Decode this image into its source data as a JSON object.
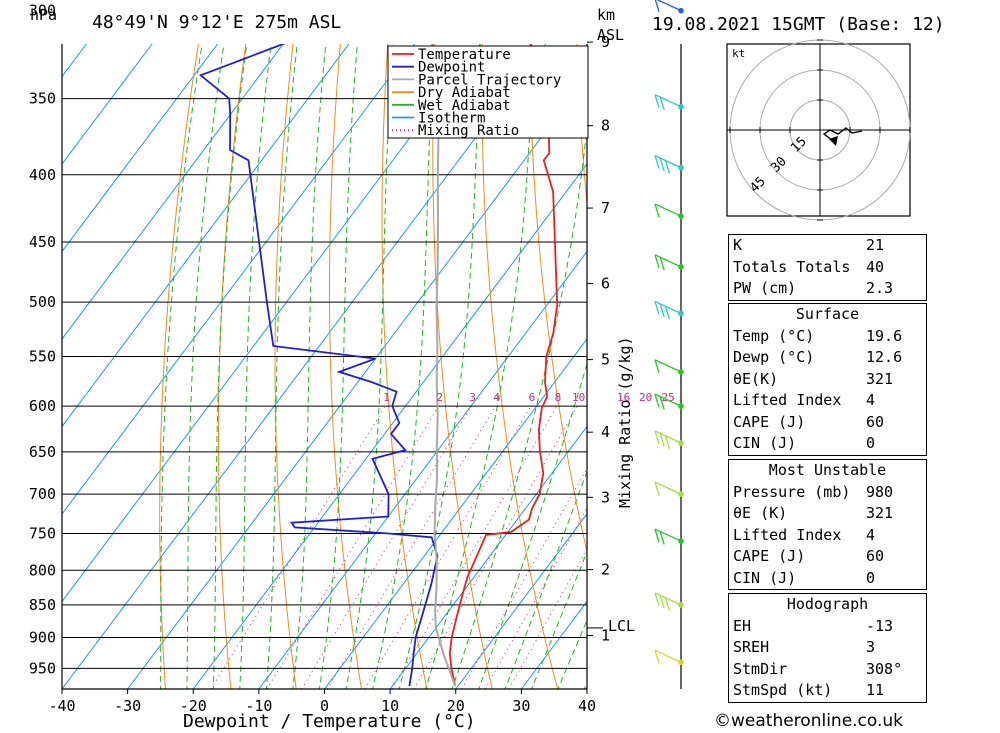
{
  "header": {
    "left_title": "48°49'N  9°12'E  275m  ASL",
    "right_title": "19.08.2021  15GMT  (Base: 12)",
    "hpa_label": "hPa",
    "km_label": "km",
    "asl_label": "ASL",
    "lcl_label": "LCL"
  },
  "chart_data": {
    "type": "line",
    "title": "48°49'N  9°12'E  275m  ASL",
    "xlabel": "Dewpoint / Temperature (°C)",
    "ylabel": "hPa",
    "right_axis_label": "Mixing Ratio (g/kg)",
    "xlim": [
      -40,
      40
    ],
    "ylim": [
      985,
      300
    ],
    "x_ticks": [
      -40,
      -30,
      -20,
      -10,
      0,
      10,
      20,
      30,
      40
    ],
    "pressure_ticks": [
      300,
      350,
      400,
      450,
      500,
      550,
      600,
      650,
      700,
      750,
      800,
      850,
      900,
      950
    ],
    "height_ticks_km": [
      1,
      2,
      3,
      4,
      5,
      6,
      7,
      8,
      9
    ],
    "height_tick_pressure": [
      897,
      799,
      704,
      628,
      553,
      484,
      424,
      367,
      317
    ],
    "lcl_pressure": 885,
    "mixing_ratio_labels": [
      "1",
      "2",
      "3",
      "4",
      "6",
      "8",
      "10",
      "16",
      "20",
      "25"
    ],
    "mixing_ratio_values": [
      1,
      2,
      3,
      4,
      6,
      8,
      10,
      16,
      20,
      25
    ],
    "legend_position": "top-right",
    "series": [
      {
        "name": "Temperature",
        "color": "#e8201e",
        "points": [
          [
            19.6,
            980
          ],
          [
            17,
            950
          ],
          [
            15,
            925
          ],
          [
            13.5,
            900
          ],
          [
            12,
            870
          ],
          [
            10.5,
            840
          ],
          [
            9,
            810
          ],
          [
            8,
            780
          ],
          [
            7.3,
            760
          ],
          [
            7,
            752
          ],
          [
            10.5,
            748
          ],
          [
            11.8,
            732
          ],
          [
            11,
            718
          ],
          [
            10.5,
            700
          ],
          [
            8.7,
            675
          ],
          [
            5.5,
            648
          ],
          [
            3,
            625
          ],
          [
            1,
            602
          ],
          [
            0.5,
            590
          ],
          [
            -1.5,
            575
          ],
          [
            -4.2,
            550
          ],
          [
            -5.8,
            528
          ],
          [
            -8.5,
            502
          ],
          [
            -13,
            470
          ],
          [
            -17.5,
            440
          ],
          [
            -22,
            412
          ],
          [
            -27,
            390
          ],
          [
            -27,
            385
          ],
          [
            -31.5,
            360
          ],
          [
            -37,
            338
          ],
          [
            -40,
            326
          ],
          [
            -44,
            312
          ],
          [
            -48,
            300
          ]
        ]
      },
      {
        "name": "Dewpoint",
        "color": "#2020d0",
        "points": [
          [
            12.6,
            980
          ],
          [
            11,
            950
          ],
          [
            9.5,
            925
          ],
          [
            8,
            900
          ],
          [
            6.2,
            860
          ],
          [
            4.3,
            820
          ],
          [
            2,
            780
          ],
          [
            -1,
            755
          ],
          [
            -8,
            750
          ],
          [
            -23,
            742
          ],
          [
            -24,
            736
          ],
          [
            -10,
            728
          ],
          [
            -12.5,
            700
          ],
          [
            -19,
            658
          ],
          [
            -15,
            648
          ],
          [
            -19,
            630
          ],
          [
            -19,
            618
          ],
          [
            -22,
            600
          ],
          [
            -23,
            585
          ],
          [
            -28,
            575
          ],
          [
            -34,
            565
          ],
          [
            -30,
            552
          ],
          [
            -47,
            540
          ],
          [
            -53,
            500
          ],
          [
            -72,
            390
          ],
          [
            -76,
            383
          ],
          [
            -80,
            360
          ],
          [
            -82,
            350
          ],
          [
            -89,
            336
          ],
          [
            -80,
            318
          ],
          [
            -92,
            300
          ]
        ]
      },
      {
        "name": "Parcel Trajectory",
        "color": "#a8a8a8",
        "points": [
          [
            19.6,
            980
          ],
          [
            14.5,
            930
          ],
          [
            10,
            885
          ],
          [
            8,
            860
          ],
          [
            5.5,
            825
          ],
          [
            2.3,
            785
          ],
          [
            -1,
            750
          ],
          [
            -4,
            715
          ],
          [
            -7,
            680
          ],
          [
            -10.5,
            645
          ],
          [
            -14,
            610
          ],
          [
            -18,
            575
          ],
          [
            -22,
            540
          ],
          [
            -26.5,
            505
          ],
          [
            -31,
            470
          ],
          [
            -36,
            435
          ],
          [
            -41.5,
            400
          ],
          [
            -47,
            367
          ],
          [
            -53,
            335
          ],
          [
            -59.5,
            310
          ]
        ]
      }
    ],
    "legend_entries": [
      {
        "name": "Temperature",
        "color": "#e8201e",
        "dotted": false
      },
      {
        "name": "Dewpoint",
        "color": "#2020d0",
        "dotted": false
      },
      {
        "name": "Parcel Trajectory",
        "color": "#a8a8a8",
        "dotted": false
      },
      {
        "name": "Dry Adiabat",
        "color": "#f08c1e",
        "dotted": false
      },
      {
        "name": "Wet Adiabat",
        "color": "#22b422",
        "dotted": false
      },
      {
        "name": "Isotherm",
        "color": "#1e9bdc",
        "dotted": false
      },
      {
        "name": "Mixing Ratio",
        "color": "#c8287a",
        "dotted": true
      }
    ],
    "wind_barbs": [
      {
        "pressure": 300,
        "color": "#1e60e6"
      },
      {
        "pressure": 355,
        "color": "#28c8c8"
      },
      {
        "pressure": 395,
        "color": "#28c8c8"
      },
      {
        "pressure": 430,
        "color": "#22c822"
      },
      {
        "pressure": 470,
        "color": "#22c822"
      },
      {
        "pressure": 510,
        "color": "#28c8c8"
      },
      {
        "pressure": 565,
        "color": "#22c822"
      },
      {
        "pressure": 600,
        "color": "#22c822"
      },
      {
        "pressure": 640,
        "color": "#a0e040"
      },
      {
        "pressure": 700,
        "color": "#a0e040"
      },
      {
        "pressure": 760,
        "color": "#22c822"
      },
      {
        "pressure": 850,
        "color": "#a0e040"
      },
      {
        "pressure": 940,
        "color": "#d8d820"
      }
    ]
  },
  "hodograph": {
    "unit_label": "kt",
    "ring_labels": [
      "15",
      "30",
      "45"
    ]
  },
  "indices": {
    "rows": [
      {
        "label": "K",
        "value": "21"
      },
      {
        "label": "Totals Totals",
        "value": "40"
      },
      {
        "label": "PW (cm)",
        "value": "2.3"
      }
    ]
  },
  "surface": {
    "heading": "Surface",
    "rows": [
      {
        "label": "Temp (°C)",
        "value": "19.6"
      },
      {
        "label": "Dewp (°C)",
        "value": "12.6"
      },
      {
        "label": "θE(K)",
        "value": "321"
      },
      {
        "label": "Lifted Index",
        "value": "4"
      },
      {
        "label": "CAPE (J)",
        "value": "60"
      },
      {
        "label": "CIN (J)",
        "value": "0"
      }
    ]
  },
  "most_unstable": {
    "heading": "Most Unstable",
    "rows": [
      {
        "label": "Pressure (mb)",
        "value": "980"
      },
      {
        "label": "θE (K)",
        "value": "321"
      },
      {
        "label": "Lifted Index",
        "value": "4"
      },
      {
        "label": "CAPE (J)",
        "value": "60"
      },
      {
        "label": "CIN (J)",
        "value": "0"
      }
    ]
  },
  "hodograph_table": {
    "heading": "Hodograph",
    "rows": [
      {
        "label": "EH",
        "value": "-13"
      },
      {
        "label": "SREH",
        "value": "3"
      },
      {
        "label": "StmDir",
        "value": "308°"
      },
      {
        "label": "StmSpd (kt)",
        "value": "11"
      }
    ]
  },
  "credit": "©weatheronline.co.uk"
}
